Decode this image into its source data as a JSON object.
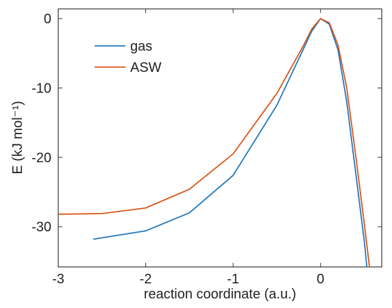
{
  "chart_data": {
    "type": "line",
    "xlabel": "reaction coordinate (a.u.)",
    "ylabel": "E (kJ mol⁻¹)",
    "xlim": [
      -3,
      0.7
    ],
    "ylim": [
      -35.8,
      1.4
    ],
    "xticks": [
      -3,
      -2,
      -1,
      0
    ],
    "yticks": [
      -30,
      -20,
      -10,
      0
    ],
    "legend": "upper left",
    "series": [
      {
        "name": "gas",
        "color": "#1f77bd",
        "x": [
          -2.6,
          -2.0,
          -1.5,
          -1.0,
          -0.5,
          -0.2,
          -0.1,
          0,
          0.1,
          0.2,
          0.3,
          0.4,
          0.5,
          0.53
        ],
        "values": [
          -31.8,
          -30.6,
          -28.0,
          -22.6,
          -12.5,
          -4.5,
          -1.8,
          0,
          -0.8,
          -4.5,
          -12,
          -22,
          -32,
          -35.8
        ]
      },
      {
        "name": "ASW",
        "color": "#d95319",
        "x": [
          -3,
          -2.5,
          -2.0,
          -1.5,
          -1.0,
          -0.5,
          -0.2,
          -0.1,
          0,
          0.1,
          0.2,
          0.3,
          0.4,
          0.5,
          0.56
        ],
        "values": [
          -28.2,
          -28.1,
          -27.3,
          -24.6,
          -19.5,
          -10.8,
          -4.0,
          -1.5,
          0,
          -0.6,
          -3.8,
          -10,
          -19.5,
          -29.5,
          -35.8
        ]
      }
    ]
  }
}
